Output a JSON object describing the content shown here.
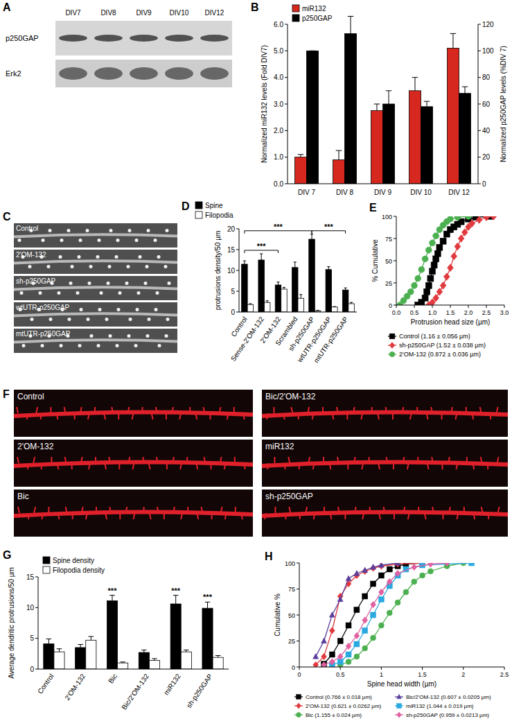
{
  "blot": {
    "panel": "A",
    "lanes": [
      "DIV7",
      "DIV8",
      "DIV9",
      "DIV10",
      "DIV12"
    ],
    "rows": [
      "p250GAP",
      "Erk2"
    ]
  },
  "images_c": {
    "panel": "C",
    "labels": [
      "Control",
      "2'OM-132",
      "sh-p250GAP",
      "wtUTR-p250GAP",
      "mtUTR-p250GAP"
    ]
  },
  "images_f": {
    "panel": "F",
    "labels": [
      "Control",
      "Bic/2'OM-132",
      "2'OM-132",
      "miR132",
      "Bic",
      "sh-p250GAP"
    ]
  },
  "chart_data": [
    {
      "panel": "B",
      "type": "bar",
      "categories": [
        "DIV 7",
        "DIV 8",
        "DIV 9",
        "DIV 10",
        "DIV 12"
      ],
      "series": [
        {
          "name": "miR132",
          "color": "#d7281f",
          "values": [
            1.0,
            0.9,
            2.75,
            3.5,
            5.1
          ],
          "errors": [
            0.1,
            0.35,
            0.25,
            0.5,
            0.55
          ]
        },
        {
          "name": "p250GAP",
          "color": "#000000",
          "axis": "y2",
          "values": [
            100,
            113,
            60,
            58,
            68
          ],
          "errors": [
            0,
            13,
            10,
            4,
            5
          ]
        }
      ],
      "ylim": [
        0,
        6
      ],
      "yticks": [
        {
          "value": 0,
          "label": "0.0"
        },
        {
          "value": 1,
          "label": "1.0"
        },
        {
          "value": 2,
          "label": "2.0"
        },
        {
          "value": 3,
          "label": "3.0"
        },
        {
          "value": 4,
          "label": "4.0"
        },
        {
          "value": 5,
          "label": "5.0"
        },
        {
          "value": 6,
          "label": "6.0"
        }
      ],
      "y2lim": [
        0,
        120
      ],
      "y2ticks": [
        0,
        20,
        40,
        60,
        80,
        100,
        120
      ],
      "y_label": "Normalized miR132 levels (Fold DIV7)",
      "y2_label": "Normalized p250GAP levels (%DIV 7)",
      "legend": "top-left"
    },
    {
      "panel": "D",
      "type": "bar",
      "categories": [
        "Control",
        "Sense-2'OM-132",
        "2'OM-132",
        "Scrambled",
        "sh-p250GAP",
        "wtUTR-p250GAP",
        "mtUTR-p250GAP"
      ],
      "series": [
        {
          "name": "Spine",
          "color": "#000000",
          "values": [
            11.5,
            12.5,
            6.5,
            10.7,
            17.5,
            10.2,
            5.3
          ],
          "errors": [
            0.8,
            1.5,
            0.7,
            1.3,
            1.2,
            0.7,
            0.5
          ]
        },
        {
          "name": "Filopodia",
          "color": "#ffffff",
          "values": [
            1.8,
            2.3,
            5.5,
            3.3,
            0.3,
            1.2,
            2.0
          ],
          "errors": [
            0.2,
            0.4,
            0.4,
            0.9,
            0.1,
            0.1,
            0.3
          ]
        }
      ],
      "ylim": [
        0,
        20
      ],
      "yticks": [
        0,
        5,
        10,
        15,
        20
      ],
      "y_label": "protrusions density/50 µm",
      "legend": "top-left",
      "annotations": [
        {
          "text": "***",
          "from": "Control",
          "to": "2'OM-132"
        },
        {
          "text": "***",
          "from": "Control",
          "to": "sh-p250GAP"
        },
        {
          "text": "***",
          "from": "sh-p250GAP",
          "to": "mtUTR-p250GAP"
        }
      ]
    },
    {
      "panel": "E",
      "type": "line",
      "x_label": "Protrusion head size (µm)",
      "y_label": "% Cumulative",
      "xlim": [
        0,
        3
      ],
      "xticks": [
        {
          "value": 0,
          "label": "0.0"
        },
        0.5,
        {
          "value": 1,
          "label": "1.0"
        },
        1.5,
        {
          "value": 2,
          "label": "2.0"
        },
        2.5,
        {
          "value": 3,
          "label": "3.0"
        }
      ],
      "ylim": [
        0,
        100
      ],
      "yticks": [
        0,
        25,
        50,
        75,
        100
      ],
      "legend": "bottom",
      "series": [
        {
          "name": "Control (1.16 ± 0.056 µm)",
          "color": "#000000",
          "marker": "square",
          "x": [
            0.6,
            0.7,
            0.8,
            0.85,
            0.9,
            0.95,
            1.0,
            1.05,
            1.1,
            1.15,
            1.2,
            1.3,
            1.4,
            1.5,
            1.6,
            1.7,
            1.8,
            2.0,
            2.2,
            2.6
          ],
          "values": [
            0,
            3,
            8,
            15,
            22,
            30,
            38,
            45,
            52,
            58,
            65,
            72,
            80,
            85,
            88,
            91,
            94,
            97,
            99,
            100
          ]
        },
        {
          "name": "sh-p250GAP (1.52 ± 0.038 µm)",
          "color": "#e03a3e",
          "marker": "diamond",
          "x": [
            0.9,
            1.0,
            1.1,
            1.2,
            1.3,
            1.4,
            1.5,
            1.6,
            1.7,
            1.8,
            1.9,
            2.0,
            2.1,
            2.3,
            2.5,
            2.7
          ],
          "values": [
            0,
            3,
            8,
            15,
            22,
            32,
            42,
            55,
            66,
            75,
            82,
            88,
            92,
            96,
            99,
            100
          ]
        },
        {
          "name": "2'OM-132 (0.872 ± 0.036 µm)",
          "color": "#4cb050",
          "marker": "circle",
          "x": [
            0.1,
            0.2,
            0.3,
            0.4,
            0.5,
            0.6,
            0.7,
            0.8,
            0.9,
            1.0,
            1.1,
            1.2,
            1.3,
            1.4,
            1.5,
            1.7,
            2.0
          ],
          "values": [
            0,
            5,
            10,
            15,
            22,
            30,
            40,
            52,
            62,
            70,
            78,
            85,
            90,
            94,
            97,
            99,
            100
          ]
        }
      ]
    },
    {
      "panel": "G",
      "type": "bar",
      "categories": [
        "Control",
        "2'OM-132",
        "Bic",
        "Bic/2'OM-132",
        "miR132",
        "sh-p250GAP"
      ],
      "series": [
        {
          "name": "Spine density",
          "color": "#000000",
          "values": [
            4.1,
            3.5,
            11.1,
            2.7,
            10.6,
            9.9
          ],
          "errors": [
            0.8,
            0.5,
            0.9,
            0.4,
            1.4,
            1.0
          ]
        },
        {
          "name": "Filopodia density",
          "color": "#ffffff",
          "values": [
            2.8,
            4.7,
            1.0,
            1.4,
            2.8,
            1.9
          ],
          "errors": [
            0.5,
            0.6,
            0.15,
            0.3,
            0.3,
            0.3
          ]
        }
      ],
      "ylim": [
        0,
        15
      ],
      "yticks": [
        0,
        5,
        10,
        15
      ],
      "y_label": "Average dendritic protrusions/50 µm",
      "legend": "top-left",
      "annotations": [
        {
          "text": "***",
          "category": "Bic"
        },
        {
          "text": "***",
          "category": "miR132"
        },
        {
          "text": "***",
          "category": "sh-p250GAP"
        }
      ]
    },
    {
      "panel": "H",
      "type": "line",
      "x_label": "Spine head width (µm)",
      "y_label": "Cumulative %",
      "xlim": [
        0,
        2.5
      ],
      "xticks": [
        0,
        0.5,
        1,
        1.5,
        2,
        2.5
      ],
      "ylim": [
        0,
        100
      ],
      "yticks": [
        0,
        25,
        50,
        75,
        100
      ],
      "legend": "bottom",
      "series": [
        {
          "name": "Control (0.766 ± 0.018 µm)",
          "color": "#000000",
          "marker": "square",
          "x": [
            0.3,
            0.4,
            0.5,
            0.6,
            0.7,
            0.8,
            0.9,
            1.0,
            1.1,
            1.2,
            1.3,
            1.5
          ],
          "values": [
            3,
            12,
            25,
            40,
            55,
            68,
            80,
            88,
            94,
            97,
            99,
            100
          ]
        },
        {
          "name": "2'OM-132 (0.621 ± 0.0262 µm)",
          "color": "#e03a3e",
          "marker": "diamond",
          "x": [
            0.2,
            0.3,
            0.4,
            0.5,
            0.6,
            0.7,
            0.8,
            0.9,
            1.0,
            1.2,
            1.5
          ],
          "values": [
            2,
            10,
            35,
            68,
            80,
            88,
            92,
            95,
            97,
            99,
            100
          ]
        },
        {
          "name": "Bic (1.155 ± 0.024 µm)",
          "color": "#4cb050",
          "marker": "circle",
          "x": [
            0.5,
            0.6,
            0.7,
            0.8,
            0.9,
            1.0,
            1.1,
            1.2,
            1.3,
            1.4,
            1.5,
            1.6,
            1.8,
            2.0
          ],
          "values": [
            2,
            5,
            10,
            18,
            28,
            40,
            52,
            62,
            72,
            82,
            88,
            92,
            97,
            100
          ]
        },
        {
          "name": "Bic/2'OM-132 (0.607 ± 0.0205 µm)",
          "color": "#5a3d9a",
          "marker": "triangle",
          "x": [
            0.2,
            0.3,
            0.4,
            0.5,
            0.6,
            0.7,
            0.8,
            0.9,
            1.0,
            1.2
          ],
          "values": [
            10,
            25,
            50,
            65,
            85,
            90,
            93,
            96,
            98,
            100
          ]
        },
        {
          "name": "miR132 (1.044 ± 0.019 µm)",
          "color": "#29a9e0",
          "marker": "square",
          "x": [
            0.4,
            0.5,
            0.6,
            0.7,
            0.8,
            0.9,
            1.0,
            1.1,
            1.2,
            1.3,
            1.5,
            2.1
          ],
          "values": [
            2,
            5,
            12,
            22,
            35,
            50,
            65,
            78,
            88,
            94,
            98,
            100
          ]
        },
        {
          "name": "sh-p250GAP (0.959 ± 0.0213 µm)",
          "color": "#e060a0",
          "marker": "diamond",
          "x": [
            0.3,
            0.4,
            0.5,
            0.6,
            0.7,
            0.8,
            0.9,
            1.0,
            1.1,
            1.2,
            1.4,
            1.6,
            1.8
          ],
          "values": [
            2,
            5,
            10,
            20,
            30,
            45,
            60,
            72,
            82,
            90,
            96,
            99,
            100
          ]
        }
      ]
    }
  ]
}
